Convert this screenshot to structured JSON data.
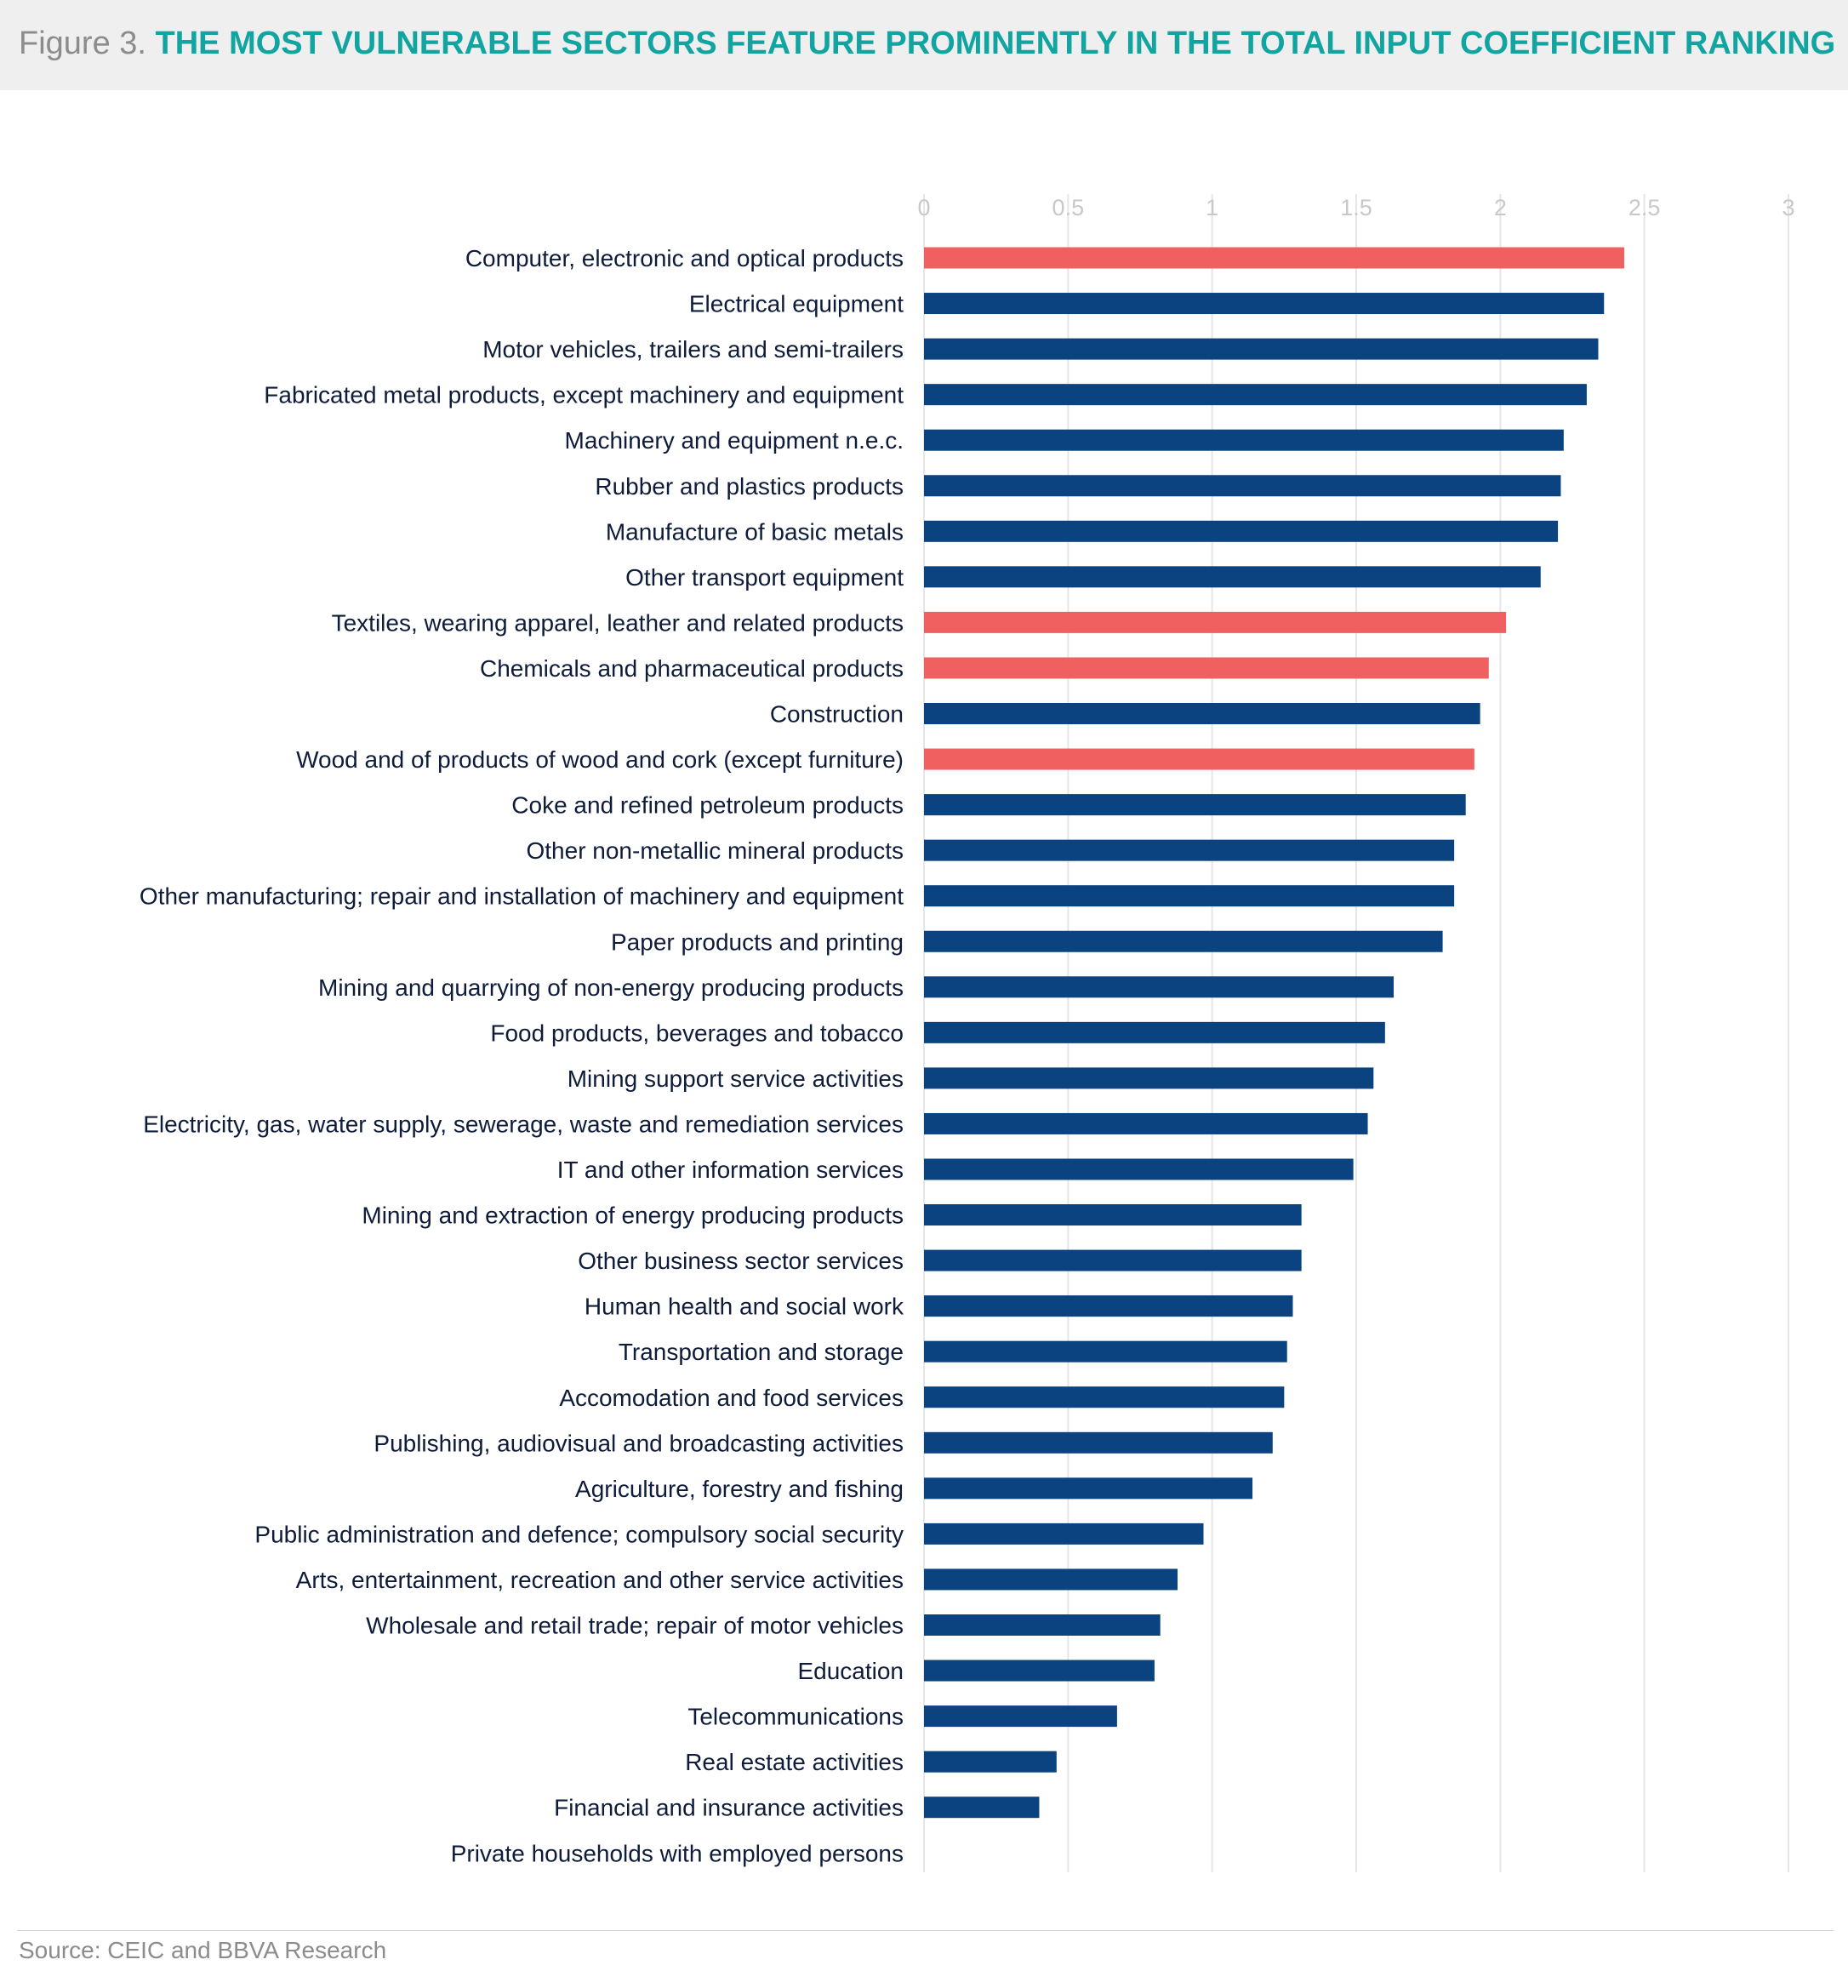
{
  "figure": {
    "label": "Figure 3.",
    "title": "THE MOST VULNERABLE SECTORS FEATURE PROMINENTLY IN THE TOTAL INPUT COEFFICIENT RANKING",
    "source": "Source: CEIC and BBVA Research"
  },
  "colors": {
    "highlight": "#f06060",
    "default": "#0b4380",
    "gridline": "#e6e6e6",
    "tick_label": "#c8c8c8",
    "category_label": "#0e1c3a"
  },
  "chart_data": {
    "type": "bar",
    "orientation": "horizontal",
    "title": "",
    "xlabel": "",
    "ylabel": "",
    "xlim": [
      0,
      3
    ],
    "x_ticks": [
      "0",
      "0.5",
      "1",
      "1.5",
      "2",
      "2.5",
      "3"
    ],
    "x_tick_values": [
      0,
      0.5,
      1,
      1.5,
      2,
      2.5,
      3
    ],
    "x_axis_position": "top",
    "grid": "vertical",
    "legend": "none",
    "categories": [
      "Computer, electronic and optical products",
      "Electrical equipment",
      "Motor vehicles, trailers and semi-trailers",
      "Fabricated metal products, except machinery and equipment",
      "Machinery and equipment n.e.c.",
      "Rubber and plastics products",
      "Manufacture of basic metals",
      "Other transport equipment",
      "Textiles, wearing apparel, leather and related products",
      "Chemicals and pharmaceutical products",
      "Construction",
      "Wood and of products of wood and cork (except furniture)",
      "Coke and refined petroleum products",
      "Other non-metallic mineral products",
      "Other manufacturing; repair and installation of machinery and equipment",
      "Paper products and printing",
      "Mining and quarrying of non-energy producing products",
      "Food products, beverages and tobacco",
      "Mining support service activities",
      "Electricity, gas, water supply, sewerage, waste and remediation services",
      "IT and other information services",
      "Mining and extraction of energy producing products",
      "Other business sector services",
      "Human health and social work",
      "Transportation and storage",
      "Accomodation and food services",
      "Publishing, audiovisual and broadcasting activities",
      "Agriculture, forestry and fishing",
      "Public administration and defence; compulsory social security",
      "Arts, entertainment, recreation and other service activities",
      "Wholesale and retail trade; repair of motor vehicles",
      "Education",
      "Telecommunications",
      "Real estate activities",
      "Financial and insurance activities",
      "Private households with employed persons"
    ],
    "values": [
      2.43,
      2.36,
      2.34,
      2.3,
      2.22,
      2.21,
      2.2,
      2.14,
      2.02,
      1.96,
      1.93,
      1.91,
      1.88,
      1.84,
      1.84,
      1.8,
      1.63,
      1.6,
      1.56,
      1.54,
      1.49,
      1.31,
      1.31,
      1.28,
      1.26,
      1.25,
      1.21,
      1.14,
      0.97,
      0.88,
      0.82,
      0.8,
      0.67,
      0.46,
      0.4,
      0
    ],
    "highlighted": [
      true,
      false,
      false,
      false,
      false,
      false,
      false,
      false,
      true,
      true,
      false,
      true,
      false,
      false,
      false,
      false,
      false,
      false,
      false,
      false,
      false,
      false,
      false,
      false,
      false,
      false,
      false,
      false,
      false,
      false,
      false,
      false,
      false,
      false,
      false,
      false
    ]
  }
}
